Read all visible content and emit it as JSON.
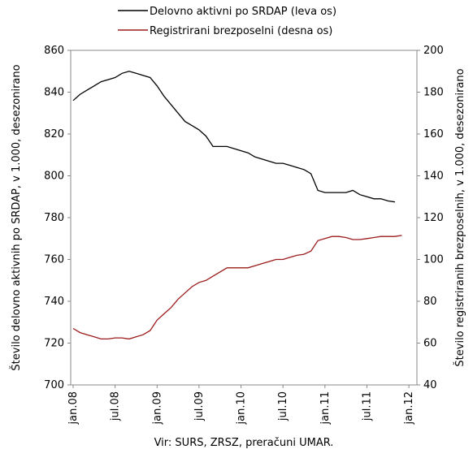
{
  "chart_data": {
    "type": "line",
    "series": [
      {
        "name": "Delovno aktivni po SRDAP (leva os)",
        "color": "#000000",
        "axis": "y",
        "values": [
          836,
          839,
          841,
          843,
          845,
          846,
          847,
          849,
          850,
          849,
          848,
          847,
          843,
          838,
          834,
          830,
          826,
          824,
          822,
          819,
          814,
          814,
          814,
          813,
          812,
          811,
          809,
          808,
          807,
          806,
          806,
          805,
          804,
          803,
          801,
          793,
          792,
          792,
          792,
          792,
          793,
          791,
          790,
          789,
          789,
          788,
          787.5,
          null,
          null
        ]
      },
      {
        "name": "Registrirani brezposelni (desna os)",
        "color": "#9b1b1b",
        "axis": "y2",
        "values": [
          67,
          65,
          64,
          63,
          62,
          62,
          62.5,
          62.5,
          62,
          63,
          64,
          66,
          71,
          74,
          77,
          81,
          84,
          87,
          89,
          90,
          92,
          94,
          96,
          96,
          96,
          96,
          97,
          98,
          99,
          100,
          100,
          101,
          102,
          102.5,
          104,
          109,
          110,
          111,
          111,
          110.5,
          109.5,
          109.5,
          110,
          110.5,
          111,
          111,
          111,
          111.5,
          null
        ]
      }
    ],
    "categories": [
      "jan.08",
      null,
      null,
      null,
      null,
      null,
      "jul.08",
      null,
      null,
      null,
      null,
      null,
      "jan.09",
      null,
      null,
      null,
      null,
      null,
      "jul.09",
      null,
      null,
      null,
      null,
      null,
      "jan.10",
      null,
      null,
      null,
      null,
      null,
      "jul.10",
      null,
      null,
      null,
      null,
      null,
      "jan.11",
      null,
      null,
      null,
      null,
      null,
      "jul.11",
      null,
      null,
      null,
      null,
      null,
      "jan.12"
    ],
    "ylim": [
      700,
      860
    ],
    "yticks": [
      700,
      720,
      740,
      760,
      780,
      800,
      820,
      840,
      860
    ],
    "y2lim": [
      40,
      200
    ],
    "y2ticks": [
      40,
      60,
      80,
      100,
      120,
      140,
      160,
      180,
      200
    ],
    "ylabel": "Število delovno aktivnih po SRDAP, v 1.000, desezonirano",
    "y2label": "Število registriranih brezposelnih, v 1.000, desezonirano",
    "source": "Vir: SURS, ZRSZ, preračuni UMAR.",
    "grid": false
  }
}
